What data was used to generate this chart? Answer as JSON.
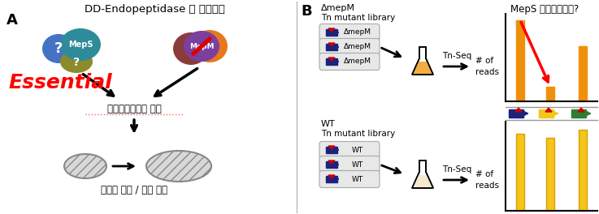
{
  "title_a": "DD-Endopeptidase 맰 조절인자",
  "title_a_raw": "DD-Endopeptidase 및 조절인자",
  "label_a": "A",
  "label_b": "B",
  "essential_text": "Essential",
  "cell_wall_text": "세포벽합성효소 활성",
  "cell_growth_text": "세포벽 확장 / 세균 생장",
  "mepm_library_line1": "ΔmepM",
  "mepm_library_line2": "Tn mutant library",
  "wt_library_line1": "WT",
  "wt_library_line2": "Tn mutant library",
  "tn_seq_text": "Tn-Seq",
  "reads_text": "# of\nreads",
  "meps_question_text": "MepS 활성조절인자?",
  "delta_mepm": "ΔmepM",
  "wt": "WT",
  "bg_color": "#ffffff",
  "essential_color": "#ff0000",
  "bar_orange": "#f0900a",
  "bar_yellow": "#f5c518",
  "gene_arrow_dark_blue": "#1a237e",
  "gene_arrow_yellow": "#f5c518",
  "gene_arrow_green": "#2e7d32"
}
